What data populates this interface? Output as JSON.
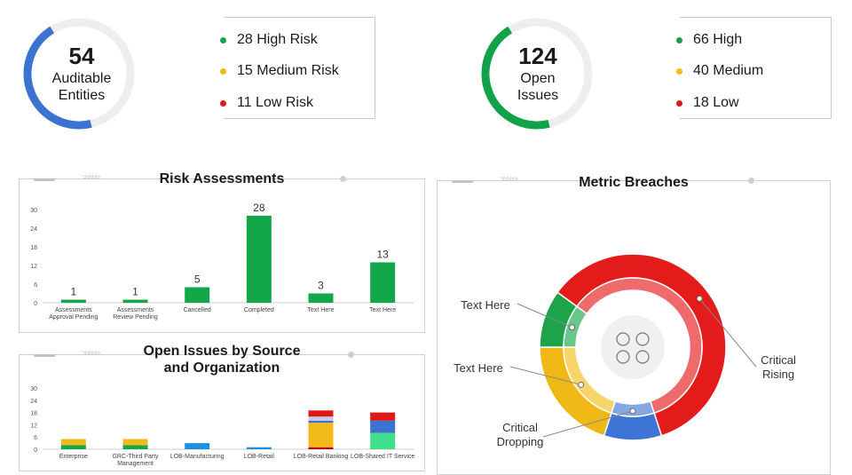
{
  "kpis": [
    {
      "value": "54",
      "label_line1": "Auditable",
      "label_line2": "Entities",
      "ring_fraction": 0.45,
      "ring_color": "#3b73d1",
      "legend": [
        {
          "text": "28 High Risk",
          "color": "#1aa04a"
        },
        {
          "text": "15 Medium Risk",
          "color": "#f2b91a"
        },
        {
          "text": "11 Low Risk",
          "color": "#e01818"
        }
      ]
    },
    {
      "value": "124",
      "label_line1": "Open",
      "label_line2": "Issues",
      "ring_fraction": 0.45,
      "ring_color": "#12a34a",
      "legend": [
        {
          "text": "66 High",
          "color": "#1aa04a"
        },
        {
          "text": "40 Medium",
          "color": "#f2b91a"
        },
        {
          "text": "18 Low",
          "color": "#e01818"
        }
      ]
    }
  ],
  "panels": {
    "risk_title": "Risk Assessments",
    "issues_title_line1": "Open Issues by Source",
    "issues_title_line2": "and Organization",
    "breaches_title": "Metric Breaches"
  },
  "metric_breaches": {
    "labels": {
      "green": "Text Here",
      "yellow": "Text Here",
      "blue_line1": "Critical",
      "blue_line2": "Dropping",
      "red_line1": "Critical",
      "red_line2": "Rising"
    },
    "segments": [
      {
        "name": "red",
        "fraction": 0.6,
        "color": "#e31b1b",
        "light": "#ef6b6b"
      },
      {
        "name": "blue",
        "fraction": 0.1,
        "color": "#3d74d6",
        "light": "#86a7e4"
      },
      {
        "name": "yellow",
        "fraction": 0.2,
        "color": "#f0b817",
        "light": "#f6d66b"
      },
      {
        "name": "green",
        "fraction": 0.1,
        "color": "#1da34a",
        "light": "#6ac68a"
      }
    ]
  },
  "chart_data": [
    {
      "type": "bar",
      "title": "Risk Assessments",
      "categories": [
        [
          "Assessments",
          "Approval Pending"
        ],
        [
          "Assessments",
          "Review Pending"
        ],
        [
          "Cancelled"
        ],
        [
          "Completed"
        ],
        [
          "Text Here"
        ],
        [
          "Text Here"
        ]
      ],
      "values": [
        1,
        1,
        5,
        28,
        3,
        13
      ],
      "yticks": [
        0,
        6,
        12,
        18,
        24,
        30
      ],
      "ylim": [
        0,
        30
      ],
      "color": "#12a84a",
      "data_labels": true
    },
    {
      "type": "bar",
      "stacked": true,
      "title": "Open Issues by Source and Organization",
      "categories": [
        [
          "Enterprise"
        ],
        [
          "GRC-Third Party",
          "Management"
        ],
        [
          "LOB-Manufacturing"
        ],
        [
          "LOB-Retail"
        ],
        [
          "LOB-Retail Banking"
        ],
        [
          "LOB-Shared IT Service"
        ]
      ],
      "yticks": [
        0,
        6,
        12,
        18,
        24,
        30
      ],
      "ylim": [
        0,
        30
      ],
      "series": [
        {
          "color": "#c00000",
          "values": [
            0,
            0,
            0,
            0,
            1,
            0
          ]
        },
        {
          "color": "#12a84a",
          "values": [
            2,
            2,
            0,
            0,
            0,
            0
          ]
        },
        {
          "color": "#40e08a",
          "values": [
            0,
            0,
            0,
            0,
            0,
            8
          ]
        },
        {
          "color": "#f2b91a",
          "values": [
            3,
            3,
            0,
            0,
            12,
            0
          ]
        },
        {
          "color": "#1e90e0",
          "values": [
            0,
            0,
            3,
            1,
            0,
            0
          ]
        },
        {
          "color": "#3b73d1",
          "values": [
            0,
            0,
            0,
            0,
            1,
            6
          ]
        },
        {
          "color": "#c8c8e8",
          "values": [
            0,
            0,
            0,
            0,
            2,
            0
          ]
        },
        {
          "color": "#e01818",
          "values": [
            0,
            0,
            0,
            0,
            3,
            4
          ]
        }
      ]
    }
  ]
}
